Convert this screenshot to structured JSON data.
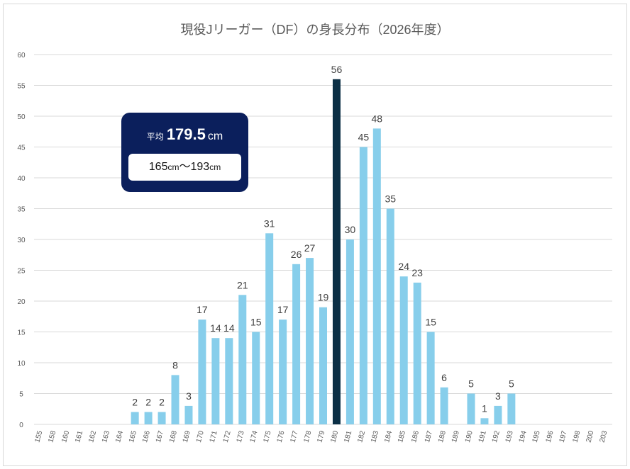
{
  "chart_data": {
    "type": "bar",
    "title": "現役Jリーガー（DF）の身長分布（2026年度）",
    "xlabel": "",
    "ylabel": "",
    "ylim": [
      0,
      60
    ],
    "yticks": [
      0,
      5,
      10,
      15,
      20,
      25,
      30,
      35,
      40,
      45,
      50,
      55,
      60
    ],
    "grid": true,
    "categories": [
      "155",
      "158",
      "160",
      "161",
      "162",
      "163",
      "164",
      "165",
      "166",
      "167",
      "168",
      "169",
      "170",
      "171",
      "172",
      "173",
      "174",
      "175",
      "176",
      "177",
      "178",
      "179",
      "180",
      "181",
      "182",
      "183",
      "184",
      "185",
      "186",
      "187",
      "188",
      "189",
      "190",
      "191",
      "192",
      "193",
      "194",
      "195",
      "196",
      "197",
      "198",
      "200",
      "203"
    ],
    "values": [
      0,
      0,
      0,
      0,
      0,
      0,
      0,
      2,
      2,
      2,
      8,
      3,
      17,
      14,
      14,
      21,
      15,
      31,
      17,
      26,
      27,
      19,
      56,
      30,
      45,
      48,
      35,
      24,
      23,
      15,
      6,
      0,
      5,
      1,
      3,
      5,
      0,
      0,
      0,
      0,
      0,
      0,
      0
    ],
    "highlight_category": "180",
    "colors": {
      "bar": "#87ceeb",
      "highlight": "#0b2f45",
      "grid": "#d9d9d9"
    }
  },
  "average_box": {
    "prefix": "平均",
    "value": "179.5",
    "unit": "cm",
    "range_min": "165",
    "range_unit_1": "cm",
    "range_sep": "～",
    "range_max": "193",
    "range_unit_2": "cm",
    "background": "#0b1f5c"
  }
}
